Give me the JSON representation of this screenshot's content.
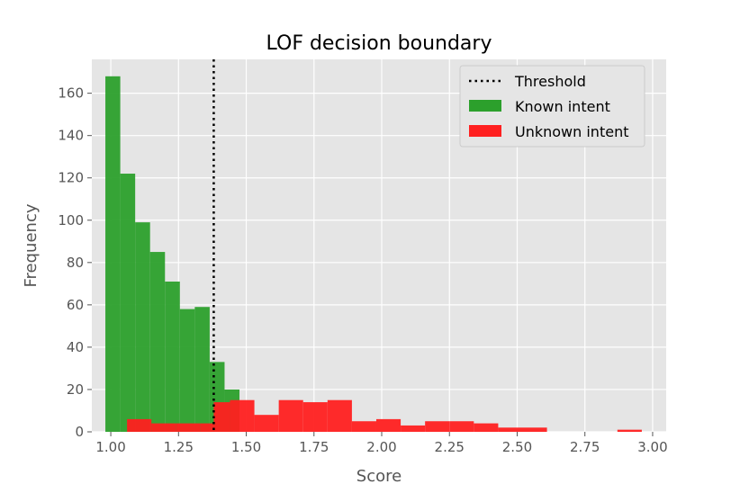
{
  "chart_data": {
    "type": "histogram",
    "title": "LOF decision boundary",
    "xlabel": "Score",
    "ylabel": "Frequency",
    "xlim": [
      0.93,
      3.05
    ],
    "ylim": [
      0,
      176
    ],
    "xticks": [
      "1.00",
      "1.25",
      "1.50",
      "1.75",
      "2.00",
      "2.25",
      "2.50",
      "2.75",
      "3.00"
    ],
    "yticks": [
      "0",
      "20",
      "40",
      "60",
      "80",
      "100",
      "120",
      "140",
      "160"
    ],
    "grid": true,
    "legend_position": "top-right",
    "legend": [
      "Threshold",
      "Known intent",
      "Unknown intent"
    ],
    "threshold": {
      "name": "Threshold",
      "x": 1.38,
      "style": "dotted",
      "color": "#000000"
    },
    "series": [
      {
        "name": "Known intent",
        "color": "#2ca02c",
        "bins": [
          {
            "x0": 0.98,
            "x1": 1.035,
            "value": 168
          },
          {
            "x0": 1.035,
            "x1": 1.09,
            "value": 122
          },
          {
            "x0": 1.09,
            "x1": 1.145,
            "value": 99
          },
          {
            "x0": 1.145,
            "x1": 1.2,
            "value": 85
          },
          {
            "x0": 1.2,
            "x1": 1.255,
            "value": 71
          },
          {
            "x0": 1.255,
            "x1": 1.31,
            "value": 58
          },
          {
            "x0": 1.31,
            "x1": 1.365,
            "value": 59
          },
          {
            "x0": 1.365,
            "x1": 1.42,
            "value": 33
          },
          {
            "x0": 1.42,
            "x1": 1.475,
            "value": 20
          }
        ]
      },
      {
        "name": "Unknown intent",
        "color": "#ff2020",
        "bins": [
          {
            "x0": 1.06,
            "x1": 1.15,
            "value": 6
          },
          {
            "x0": 1.15,
            "x1": 1.24,
            "value": 4
          },
          {
            "x0": 1.24,
            "x1": 1.33,
            "value": 4
          },
          {
            "x0": 1.33,
            "x1": 1.38,
            "value": 4
          },
          {
            "x0": 1.38,
            "x1": 1.44,
            "value": 14
          },
          {
            "x0": 1.44,
            "x1": 1.53,
            "value": 15
          },
          {
            "x0": 1.53,
            "x1": 1.62,
            "value": 8
          },
          {
            "x0": 1.62,
            "x1": 1.71,
            "value": 15
          },
          {
            "x0": 1.71,
            "x1": 1.8,
            "value": 14
          },
          {
            "x0": 1.8,
            "x1": 1.89,
            "value": 15
          },
          {
            "x0": 1.89,
            "x1": 1.98,
            "value": 5
          },
          {
            "x0": 1.98,
            "x1": 2.07,
            "value": 6
          },
          {
            "x0": 2.07,
            "x1": 2.16,
            "value": 3
          },
          {
            "x0": 2.16,
            "x1": 2.25,
            "value": 5
          },
          {
            "x0": 2.25,
            "x1": 2.34,
            "value": 5
          },
          {
            "x0": 2.34,
            "x1": 2.43,
            "value": 4
          },
          {
            "x0": 2.43,
            "x1": 2.52,
            "value": 2
          },
          {
            "x0": 2.52,
            "x1": 2.61,
            "value": 2
          },
          {
            "x0": 2.87,
            "x1": 2.96,
            "value": 1
          }
        ]
      }
    ]
  }
}
